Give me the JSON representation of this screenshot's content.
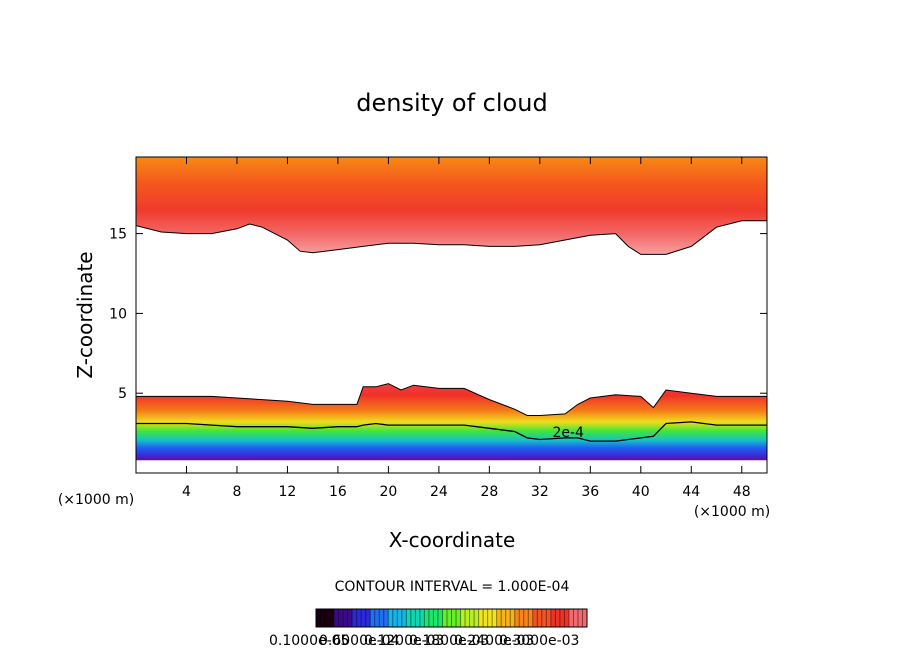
{
  "chart_data": {
    "type": "heatmap",
    "title": "density of cloud",
    "xlabel": "X-coordinate",
    "ylabel": "Z-coordinate",
    "x_unit_left": "(×1000 m)",
    "x_unit_right": "(×1000 m)",
    "xlim": [
      0,
      50
    ],
    "ylim": [
      0,
      19.8
    ],
    "xticks": [
      {
        "value": 4,
        "label": "4"
      },
      {
        "value": 8,
        "label": "8"
      },
      {
        "value": 12,
        "label": "12"
      },
      {
        "value": 16,
        "label": "16"
      },
      {
        "value": 20,
        "label": "20"
      },
      {
        "value": 24,
        "label": "24"
      },
      {
        "value": 28,
        "label": "28"
      },
      {
        "value": 32,
        "label": "32"
      },
      {
        "value": 36,
        "label": "36"
      },
      {
        "value": 40,
        "label": "40"
      },
      {
        "value": 44,
        "label": "44"
      },
      {
        "value": 48,
        "label": "48"
      }
    ],
    "yticks": [
      {
        "value": 5,
        "label": "5"
      },
      {
        "value": 10,
        "label": "10"
      },
      {
        "value": 15,
        "label": "15"
      }
    ],
    "contour_interval_text": "CONTOUR INTERVAL = 1.000E-04",
    "contour_label": {
      "text": "2e-4",
      "x": 33,
      "z": 2.2
    },
    "colorbar_labels_text": "0.1000e-05",
    "colorbar_labels_overlap": [
      "0.6000e-04",
      "0.1200e-03",
      "0.1800e-03",
      "0.2400e-03",
      "0.3000e-03"
    ],
    "colorbar_colors": [
      "#1a0010",
      "#3a0a8a",
      "#2a2ad8",
      "#1f6ff0",
      "#17b4e6",
      "#12d6b0",
      "#1ee66a",
      "#66ee2a",
      "#b8ee26",
      "#f0e41e",
      "#f6b418",
      "#f8841a",
      "#f45224",
      "#ee3228",
      "#f06a70"
    ],
    "upper_layer": {
      "x": [
        0,
        2,
        4,
        6,
        8,
        9,
        10,
        12,
        13,
        14,
        16,
        18,
        20,
        22,
        24,
        26,
        28,
        30,
        32,
        34,
        36,
        38,
        39,
        40,
        42,
        44,
        46,
        48,
        50
      ],
      "z_base": [
        15.5,
        15.1,
        15.0,
        15.0,
        15.3,
        15.6,
        15.4,
        14.6,
        13.9,
        13.8,
        14.0,
        14.2,
        14.4,
        14.4,
        14.3,
        14.3,
        14.2,
        14.2,
        14.3,
        14.6,
        14.9,
        15.0,
        14.2,
        13.7,
        13.7,
        14.2,
        15.4,
        15.8,
        15.8
      ]
    },
    "lower_layer": {
      "x": [
        0,
        2,
        4,
        6,
        8,
        10,
        12,
        14,
        16,
        17.5,
        18,
        19,
        20,
        21,
        22,
        24,
        26,
        28,
        30,
        31,
        32,
        34,
        35,
        36,
        38,
        40,
        41,
        42,
        44,
        46,
        48,
        50
      ],
      "z_top": [
        4.8,
        4.8,
        4.8,
        4.8,
        4.7,
        4.6,
        4.5,
        4.3,
        4.3,
        4.3,
        5.4,
        5.4,
        5.6,
        5.2,
        5.5,
        5.3,
        5.3,
        4.6,
        4.0,
        3.6,
        3.6,
        3.7,
        4.3,
        4.7,
        4.9,
        4.8,
        4.1,
        5.2,
        5.0,
        4.8,
        4.8,
        4.8
      ],
      "contour_2e4": [
        3.1,
        3.1,
        3.1,
        3.0,
        2.9,
        2.9,
        2.9,
        2.8,
        2.9,
        2.9,
        3.0,
        3.1,
        3.0,
        3.0,
        3.0,
        3.0,
        3.0,
        2.8,
        2.6,
        2.2,
        2.1,
        2.2,
        2.2,
        2.0,
        2.0,
        2.2,
        2.3,
        3.1,
        3.2,
        3.0,
        3.0,
        3.0
      ],
      "z_bottom": 0.8
    }
  }
}
